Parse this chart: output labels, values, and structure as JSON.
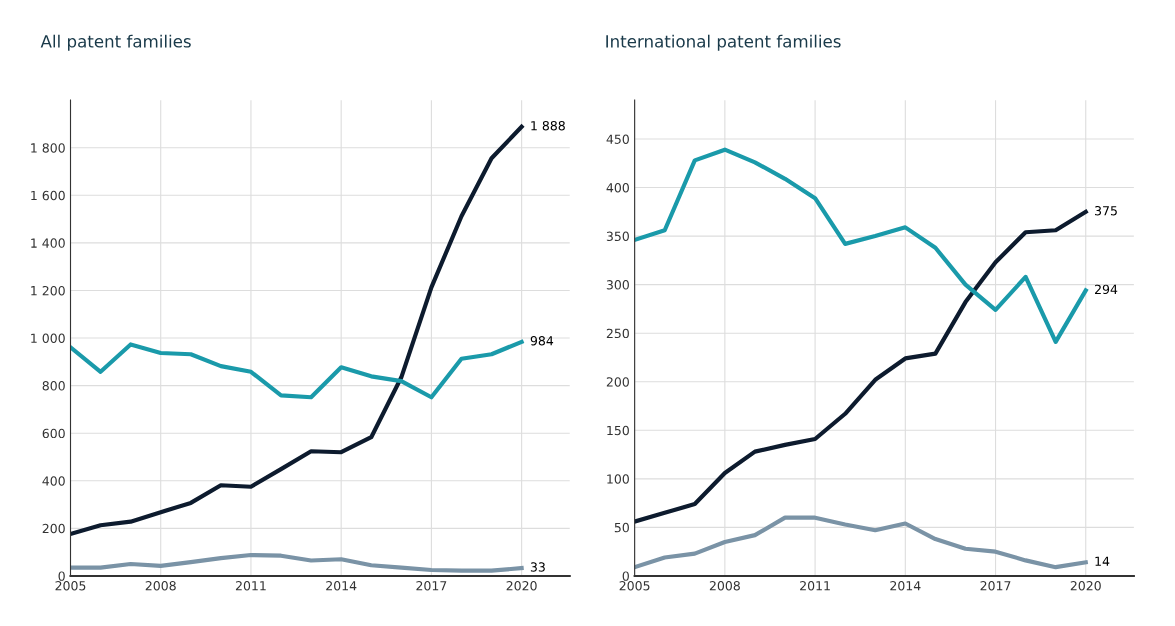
{
  "chart_data": [
    {
      "type": "line",
      "title": "All patent families",
      "x": [
        2005,
        2006,
        2007,
        2008,
        2009,
        2010,
        2011,
        2012,
        2013,
        2014,
        2015,
        2016,
        2017,
        2018,
        2019,
        2020
      ],
      "series": [
        {
          "color": "#0d1b2e",
          "values": [
            176,
            213,
            228,
            268,
            307,
            381,
            375,
            449,
            524,
            520,
            583,
            835,
            1213,
            1512,
            1756,
            1888
          ],
          "value_labels": [
            null,
            null,
            null,
            null,
            null,
            null,
            null,
            null,
            null,
            null,
            null,
            null,
            null,
            null,
            null,
            "1 888"
          ]
        },
        {
          "color": "#1a9aaa",
          "values": [
            961,
            858,
            973,
            937,
            932,
            882,
            858,
            759,
            751,
            877,
            839,
            819,
            751,
            913,
            932,
            984
          ],
          "value_labels": [
            null,
            null,
            null,
            null,
            null,
            null,
            null,
            null,
            null,
            null,
            null,
            null,
            null,
            null,
            null,
            "984"
          ]
        },
        {
          "color": "#7a93a6",
          "values": [
            35,
            35,
            50,
            42,
            58,
            75,
            88,
            85,
            65,
            70,
            45,
            35,
            25,
            22,
            22,
            33
          ],
          "value_labels": [
            null,
            null,
            null,
            null,
            null,
            null,
            null,
            null,
            null,
            null,
            null,
            null,
            null,
            null,
            null,
            "33"
          ]
        }
      ],
      "xlim": [
        2005,
        2021.6
      ],
      "xticks": [
        2005,
        2008,
        2011,
        2014,
        2017,
        2020
      ],
      "ylim": [
        0,
        2000
      ],
      "yticks": [
        0,
        200,
        400,
        600,
        800,
        {
          "value": 1000,
          "label": "1 000"
        },
        {
          "value": 1200,
          "label": "1 200"
        },
        {
          "value": 1400,
          "label": "1 400"
        },
        {
          "value": 1600,
          "label": "1 600"
        },
        {
          "value": 1800,
          "label": "1 800"
        }
      ],
      "grid": true
    },
    {
      "type": "line",
      "title": "International patent families",
      "x": [
        2005,
        2006,
        2007,
        2008,
        2009,
        2010,
        2011,
        2012,
        2013,
        2014,
        2015,
        2016,
        2017,
        2018,
        2019,
        2020
      ],
      "series": [
        {
          "color": "#0d1b2e",
          "values": [
            56,
            65,
            74,
            106,
            128,
            135,
            141,
            167,
            202,
            224,
            229,
            282,
            323,
            354,
            356,
            375
          ],
          "value_labels": [
            null,
            null,
            null,
            null,
            null,
            null,
            null,
            null,
            null,
            null,
            null,
            null,
            null,
            null,
            null,
            "375"
          ]
        },
        {
          "color": "#1a9aaa",
          "values": [
            346,
            356,
            428,
            439,
            426,
            409,
            389,
            342,
            350,
            359,
            338,
            300,
            274,
            308,
            241,
            294
          ],
          "value_labels": [
            null,
            null,
            null,
            null,
            null,
            null,
            null,
            null,
            null,
            null,
            null,
            null,
            null,
            null,
            null,
            "294"
          ]
        },
        {
          "color": "#7a93a6",
          "values": [
            9,
            19,
            23,
            35,
            42,
            60,
            60,
            53,
            47,
            54,
            38,
            28,
            25,
            16,
            9,
            14
          ],
          "value_labels": [
            null,
            null,
            null,
            null,
            null,
            null,
            null,
            null,
            null,
            null,
            null,
            null,
            null,
            null,
            null,
            "14"
          ]
        }
      ],
      "xlim": [
        2005,
        2021.6
      ],
      "xticks": [
        2005,
        2008,
        2011,
        2014,
        2017,
        2020
      ],
      "ylim": [
        0,
        490
      ],
      "yticks": [
        0,
        50,
        100,
        150,
        200,
        250,
        300,
        350,
        400,
        450
      ],
      "grid": true
    }
  ]
}
